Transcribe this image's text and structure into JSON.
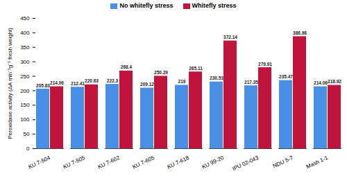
{
  "chart_data": {
    "type": "bar",
    "categories": [
      "KU 7-504",
      "KU 7-505",
      "KU 7-602",
      "KU 7-605",
      "KU 7-618",
      "KU 99-20",
      "IPU 02-043",
      "NDU 5-7",
      "Mash 1-1"
    ],
    "series": [
      {
        "name": "No whitefly stress",
        "color": "#4a8fe6",
        "values": [
          205.83,
          212.41,
          222.3,
          209.12,
          219,
          230.53,
          217.35,
          235.47,
          214.06
        ]
      },
      {
        "name": "Whitefly stress",
        "color": "#c0143c",
        "values": [
          214.06,
          220.63,
          268.4,
          250.29,
          265.11,
          372.14,
          279.91,
          386.98,
          218.92
        ]
      }
    ],
    "y_label": "Peroxidase activity (ΔA min⁻¹g⁻¹ fresh weight)",
    "ylim": [
      0,
      450
    ],
    "yticks": [
      0,
      50,
      100,
      150,
      200,
      250,
      300,
      350,
      400,
      450
    ],
    "grid": false,
    "legend": "top",
    "data_labels": true
  }
}
